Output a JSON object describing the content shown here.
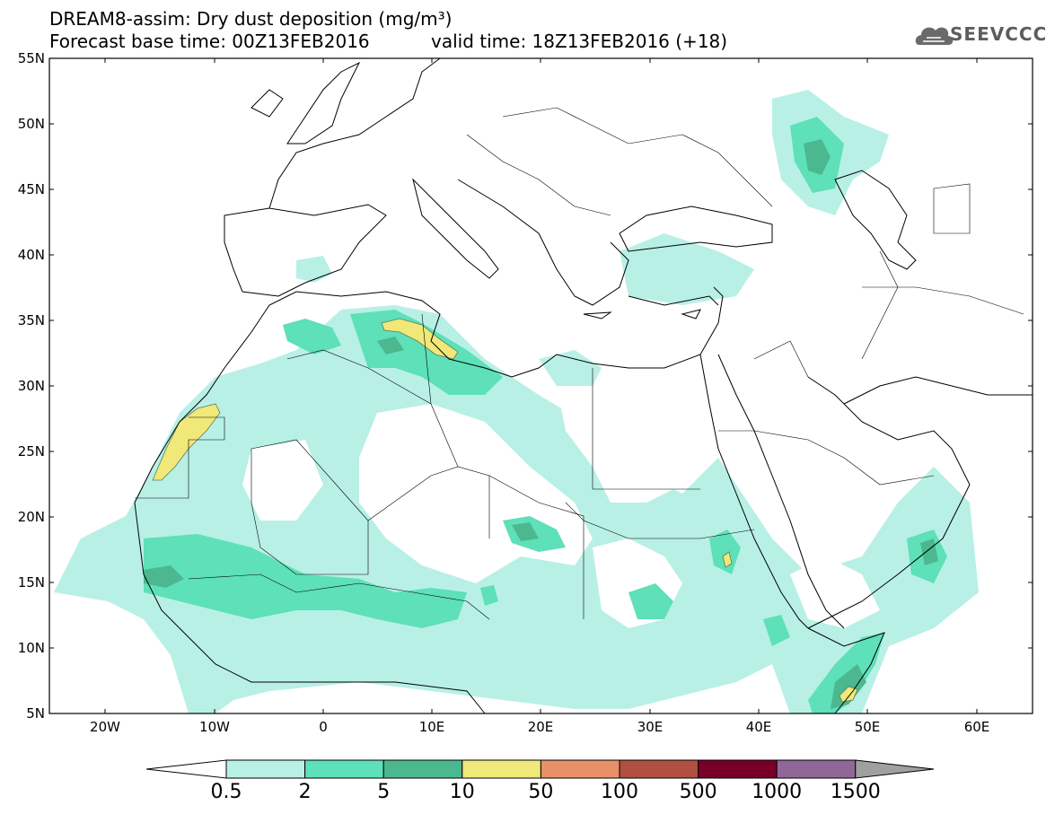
{
  "header": {
    "title": "DREAM8-assim: Dry dust deposition (mg/m³)",
    "base_time": "Forecast base time: 00Z13FEB2016",
    "valid_time": "valid time: 18Z13FEB2016 (+18)",
    "logo_text": "SEEVCCC",
    "logo_icon": "cloud-icon"
  },
  "axes": {
    "lat_labels": [
      "55N",
      "50N",
      "45N",
      "40N",
      "35N",
      "30N",
      "25N",
      "20N",
      "15N",
      "10N",
      "5N"
    ],
    "lon_labels": [
      "20W",
      "10W",
      "0",
      "10E",
      "20E",
      "30E",
      "40E",
      "50E",
      "60E"
    ]
  },
  "colorbar": {
    "labels": [
      "0.5",
      "2",
      "5",
      "10",
      "50",
      "100",
      "500",
      "1000",
      "1500"
    ],
    "colors": [
      "#b8f0e6",
      "#5ee0b8",
      "#4cb890",
      "#f0e878",
      "#e89068",
      "#b05040",
      "#780028",
      "#906898",
      "#a0a0a0"
    ]
  }
}
